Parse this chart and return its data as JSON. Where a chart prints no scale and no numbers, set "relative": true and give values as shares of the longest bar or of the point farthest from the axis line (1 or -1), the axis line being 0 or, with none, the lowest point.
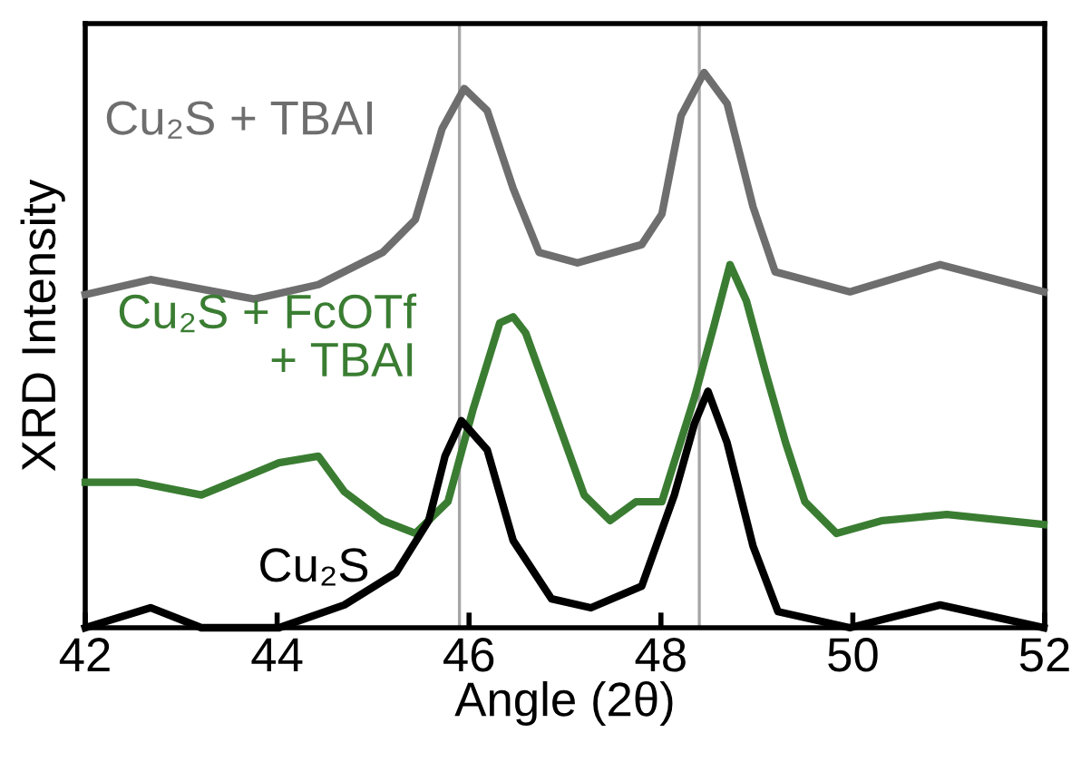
{
  "chart_data": {
    "type": "line",
    "relative": true,
    "xlabel": "Angle (2θ)",
    "ylabel": "XRD Intensity",
    "xlim": [
      42,
      52
    ],
    "xticks": [
      42,
      44,
      46,
      48,
      50,
      52
    ],
    "grid": false,
    "legend": false,
    "line_style": "solid",
    "marker": "none",
    "ref_lines": [
      {
        "axis": "x",
        "value": 45.9,
        "color": "#a6a6a6"
      },
      {
        "axis": "x",
        "value": 48.4,
        "color": "#a6a6a6"
      }
    ],
    "series": [
      {
        "name": "Cu₂S + TBAI",
        "color": "#6e6e6e",
        "x": [
          42.0,
          42.68,
          43.76,
          44.43,
          45.1,
          45.44,
          45.72,
          45.95,
          46.19,
          46.46,
          46.73,
          47.13,
          47.8,
          48.01,
          48.21,
          48.45,
          48.69,
          48.96,
          49.19,
          49.97,
          50.91,
          51.99
        ],
        "values": [
          0.6,
          0.627,
          0.592,
          0.618,
          0.676,
          0.735,
          0.899,
          0.971,
          0.931,
          0.791,
          0.676,
          0.657,
          0.69,
          0.745,
          0.922,
          1.0,
          0.944,
          0.758,
          0.641,
          0.605,
          0.654,
          0.605
        ]
      },
      {
        "name": "Cu₂S + FcOTf\n+ TBAI",
        "color": "#3a7d32",
        "x": [
          42.0,
          42.54,
          43.21,
          44.02,
          44.43,
          44.7,
          45.1,
          45.44,
          45.78,
          46.04,
          46.32,
          46.46,
          46.59,
          46.86,
          47.2,
          47.47,
          47.74,
          48.01,
          48.35,
          48.55,
          48.72,
          48.89,
          49.09,
          49.3,
          49.5,
          49.83,
          50.31,
          50.98,
          51.99
        ],
        "values": [
          0.262,
          0.262,
          0.239,
          0.297,
          0.309,
          0.245,
          0.193,
          0.17,
          0.227,
          0.392,
          0.549,
          0.56,
          0.531,
          0.402,
          0.239,
          0.193,
          0.227,
          0.227,
          0.415,
          0.542,
          0.654,
          0.589,
          0.461,
          0.333,
          0.227,
          0.17,
          0.193,
          0.204,
          0.186
        ]
      },
      {
        "name": "Cu₂S",
        "color": "#000000",
        "x": [
          42.0,
          42.68,
          43.21,
          44.02,
          44.7,
          45.24,
          45.58,
          45.75,
          45.92,
          46.19,
          46.46,
          46.86,
          47.27,
          47.8,
          48.14,
          48.35,
          48.49,
          48.69,
          48.96,
          49.22,
          49.97,
          50.91,
          51.99
        ],
        "values": [
          0.0,
          0.036,
          0.0,
          0.0,
          0.041,
          0.099,
          0.193,
          0.309,
          0.373,
          0.32,
          0.157,
          0.052,
          0.036,
          0.075,
          0.239,
          0.368,
          0.426,
          0.333,
          0.147,
          0.029,
          0.0,
          0.041,
          0.0
        ]
      }
    ]
  }
}
